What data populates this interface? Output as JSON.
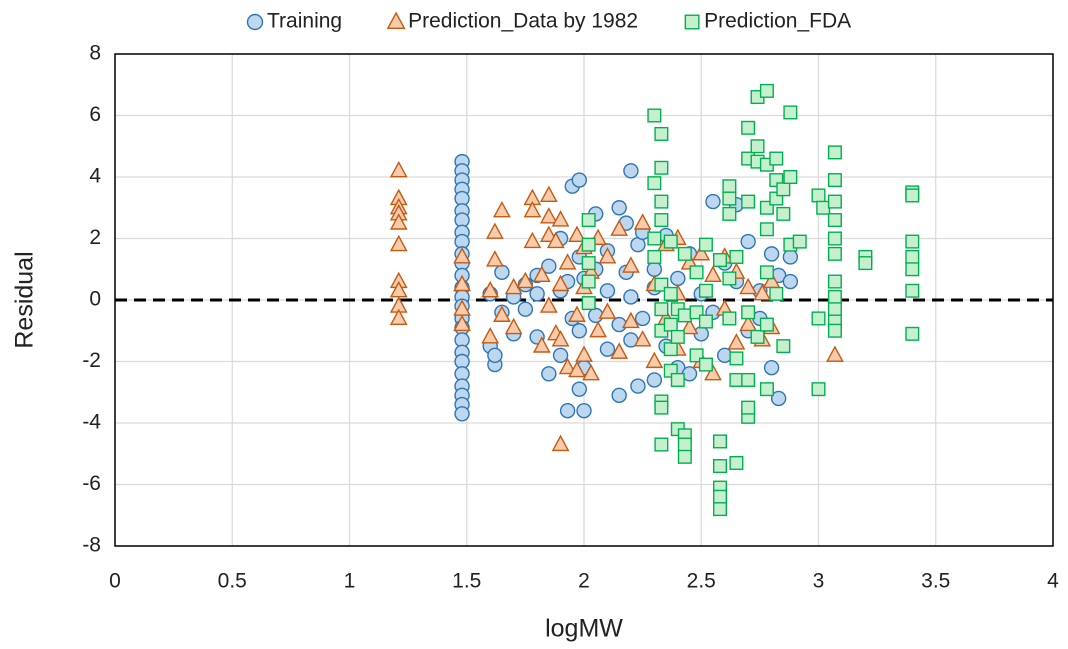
{
  "chart_data": {
    "type": "scatter",
    "x_label": "logMW",
    "y_label": "Residual",
    "xlim": [
      0,
      4
    ],
    "ylim": [
      -8,
      8
    ],
    "xticks": [
      0,
      0.5,
      1,
      1.5,
      2,
      2.5,
      3,
      3.5,
      4
    ],
    "yticks": [
      -8,
      -6,
      -4,
      -2,
      0,
      2,
      4,
      6,
      8
    ],
    "grid": true,
    "hline": 0,
    "legend": "top",
    "series": [
      {
        "name": "Training",
        "marker": "circle",
        "color": "#bdd7ee",
        "edgecolor": "#2e75b6",
        "x": [
          1.48,
          1.48,
          1.48,
          1.48,
          1.48,
          1.48,
          1.48,
          1.48,
          1.48,
          1.48,
          1.48,
          1.48,
          1.48,
          1.48,
          1.48,
          1.48,
          1.48,
          1.48,
          1.48,
          1.48,
          1.48,
          1.48,
          1.48,
          1.48,
          1.48,
          1.6,
          1.6,
          1.62,
          1.62,
          1.65,
          1.65,
          1.7,
          1.7,
          1.75,
          1.75,
          1.8,
          1.8,
          1.8,
          1.85,
          1.85,
          1.9,
          1.9,
          1.9,
          1.93,
          1.93,
          1.95,
          1.95,
          1.98,
          1.98,
          1.98,
          1.98,
          2.0,
          2.0,
          2.0,
          2.05,
          2.05,
          2.05,
          2.1,
          2.1,
          2.1,
          2.15,
          2.15,
          2.15,
          2.18,
          2.18,
          2.2,
          2.2,
          2.2,
          2.23,
          2.23,
          2.25,
          2.25,
          2.3,
          2.3,
          2.3,
          2.35,
          2.35,
          2.4,
          2.4,
          2.45,
          2.45,
          2.5,
          2.5,
          2.55,
          2.55,
          2.6,
          2.6,
          2.65,
          2.65,
          2.7,
          2.7,
          2.75,
          2.75,
          2.8,
          2.8,
          2.83,
          2.83,
          2.88,
          2.88
        ],
        "values": [
          4.5,
          4.2,
          3.9,
          3.6,
          3.3,
          2.9,
          2.6,
          2.2,
          1.9,
          1.5,
          1.2,
          0.8,
          0.4,
          0.1,
          -0.2,
          -0.6,
          -0.9,
          -1.3,
          -1.7,
          -2.0,
          -2.4,
          -2.8,
          -3.1,
          -3.4,
          -3.7,
          -1.5,
          0.2,
          -2.1,
          -1.8,
          -0.4,
          0.9,
          0.1,
          -1.1,
          0.5,
          -0.3,
          0.8,
          -1.2,
          0.2,
          -2.4,
          1.1,
          0.3,
          -1.8,
          2.0,
          -3.6,
          0.6,
          3.7,
          -0.6,
          3.9,
          -2.9,
          1.4,
          -1.0,
          -3.6,
          0.7,
          -2.2,
          2.8,
          -0.5,
          1.0,
          1.6,
          -1.6,
          0.3,
          3.0,
          -3.1,
          -0.8,
          2.5,
          0.9,
          4.2,
          -1.3,
          0.1,
          -2.8,
          1.8,
          -0.6,
          2.2,
          -2.6,
          1.0,
          0.4,
          -1.5,
          2.1,
          0.7,
          -2.2,
          1.5,
          -2.4,
          0.2,
          -1.1,
          3.2,
          -0.4,
          1.2,
          -1.8,
          3.1,
          0.6,
          -1.0,
          1.9,
          0.3,
          -0.6,
          1.5,
          -2.2,
          -3.2,
          0.8,
          1.4,
          0.6
        ]
      },
      {
        "name": "Prediction_Data by 1982",
        "marker": "triangle",
        "color": "#f8cbad",
        "edgecolor": "#c55a11",
        "x": [
          1.21,
          1.21,
          1.21,
          1.21,
          1.21,
          1.21,
          1.21,
          1.21,
          1.21,
          1.21,
          1.48,
          1.48,
          1.48,
          1.48,
          1.6,
          1.6,
          1.62,
          1.62,
          1.65,
          1.65,
          1.7,
          1.7,
          1.75,
          1.78,
          1.78,
          1.78,
          1.82,
          1.82,
          1.85,
          1.85,
          1.85,
          1.85,
          1.88,
          1.88,
          1.9,
          1.9,
          1.9,
          1.9,
          1.93,
          1.93,
          1.97,
          1.97,
          1.97,
          2.0,
          2.0,
          2.0,
          2.03,
          2.03,
          2.06,
          2.06,
          2.1,
          2.1,
          2.15,
          2.15,
          2.2,
          2.2,
          2.25,
          2.25,
          2.3,
          2.3,
          2.35,
          2.35,
          2.4,
          2.4,
          2.4,
          2.45,
          2.45,
          2.5,
          2.5,
          2.55,
          2.55,
          2.6,
          2.6,
          2.65,
          2.65,
          2.7,
          2.7,
          2.76,
          2.76,
          2.8,
          2.8,
          3.07
        ],
        "values": [
          4.2,
          3.3,
          3.0,
          2.8,
          2.5,
          1.8,
          0.6,
          0.3,
          -0.2,
          -0.6,
          1.4,
          0.5,
          -0.3,
          -0.8,
          -1.2,
          0.3,
          2.2,
          1.3,
          2.9,
          -0.5,
          0.4,
          -0.9,
          0.6,
          3.3,
          2.9,
          1.9,
          0.8,
          -1.5,
          3.4,
          2.7,
          2.1,
          -0.2,
          1.9,
          -1.1,
          -4.7,
          2.6,
          0.5,
          -1.3,
          -2.2,
          1.2,
          2.1,
          -0.5,
          -2.3,
          1.7,
          -1.8,
          0.4,
          -2.4,
          0.9,
          2.0,
          -1.0,
          -0.4,
          1.4,
          -1.7,
          2.3,
          1.1,
          -0.7,
          2.5,
          -1.3,
          0.5,
          -2.0,
          1.8,
          -0.6,
          2.0,
          -1.6,
          0.2,
          1.2,
          -0.9,
          1.5,
          -2.0,
          -2.4,
          0.8,
          1.4,
          -0.3,
          0.9,
          -1.4,
          0.4,
          -0.8,
          -1.3,
          0.2,
          -0.9,
          0.6,
          -1.8
        ]
      },
      {
        "name": "Prediction_FDA",
        "marker": "square",
        "color": "#c6efce",
        "edgecolor": "#00b050",
        "x": [
          2.02,
          2.02,
          2.02,
          2.02,
          2.02,
          2.3,
          2.3,
          2.3,
          2.3,
          2.33,
          2.33,
          2.33,
          2.33,
          2.33,
          2.33,
          2.33,
          2.33,
          2.33,
          2.33,
          2.37,
          2.37,
          2.37,
          2.37,
          2.37,
          2.4,
          2.4,
          2.4,
          2.4,
          2.43,
          2.43,
          2.43,
          2.43,
          2.43,
          2.48,
          2.48,
          2.48,
          2.52,
          2.52,
          2.52,
          2.52,
          2.58,
          2.58,
          2.58,
          2.58,
          2.58,
          2.58,
          2.62,
          2.62,
          2.62,
          2.62,
          2.62,
          2.65,
          2.65,
          2.65,
          2.65,
          2.7,
          2.7,
          2.7,
          2.7,
          2.7,
          2.7,
          2.7,
          2.74,
          2.74,
          2.74,
          2.74,
          2.78,
          2.78,
          2.78,
          2.78,
          2.78,
          2.78,
          2.78,
          2.82,
          2.82,
          2.82,
          2.82,
          2.85,
          2.85,
          2.85,
          2.88,
          2.88,
          2.88,
          2.92,
          3.0,
          3.0,
          3.0,
          3.02,
          3.07,
          3.07,
          3.07,
          3.07,
          3.07,
          3.07,
          3.07,
          3.07,
          3.07,
          3.07,
          3.07,
          3.2,
          3.2,
          3.4,
          3.4,
          3.4,
          3.4,
          3.4,
          3.4,
          3.4
        ],
        "values": [
          2.6,
          1.8,
          1.2,
          0.6,
          -0.1,
          6.0,
          3.8,
          2.0,
          1.4,
          5.4,
          4.3,
          3.2,
          2.6,
          0.5,
          -0.3,
          -1.0,
          -3.3,
          -3.5,
          -4.7,
          1.9,
          0.2,
          -0.8,
          -1.6,
          -2.3,
          -0.3,
          -1.2,
          -2.6,
          -4.2,
          -4.4,
          -4.7,
          -5.1,
          1.5,
          -0.5,
          -0.4,
          0.9,
          -1.8,
          1.8,
          -0.7,
          0.3,
          -2.1,
          -4.6,
          -5.4,
          -6.1,
          -6.4,
          -6.8,
          1.3,
          3.7,
          3.3,
          2.8,
          0.7,
          -0.6,
          -1.9,
          -2.6,
          -5.3,
          1.4,
          4.6,
          5.6,
          3.2,
          -2.6,
          -3.8,
          -3.5,
          -0.4,
          6.6,
          5.0,
          4.5,
          -1.2,
          6.8,
          4.4,
          3.0,
          2.3,
          0.9,
          -0.8,
          -2.9,
          4.6,
          3.9,
          3.3,
          0.2,
          3.6,
          2.8,
          -1.5,
          6.1,
          4.0,
          1.8,
          1.9,
          3.4,
          -0.6,
          -2.9,
          3.0,
          4.8,
          3.9,
          3.2,
          2.6,
          2.0,
          1.5,
          0.6,
          0.1,
          -0.3,
          -0.7,
          -1.0,
          1.4,
          1.2,
          3.5,
          3.4,
          1.9,
          1.4,
          1.0,
          0.3,
          -1.1
        ]
      }
    ]
  }
}
